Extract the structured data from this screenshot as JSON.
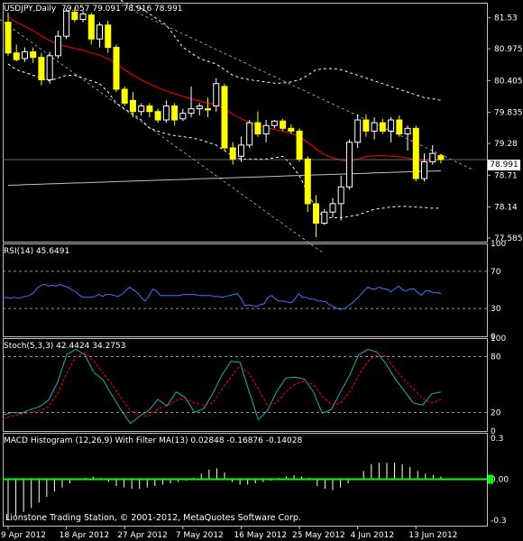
{
  "instrument": "USDJPY,Daily",
  "ohlc_readout": "79.057 79.091 78.916 78.991",
  "current_price_label": "78.991",
  "footer": "Lionstone Trading Station, © 2001-2012, MetaQuotes Software Corp.",
  "colors": {
    "background": "#000000",
    "bull_candle": "#ffffff",
    "bear_candle": "#ffff00",
    "moving_average": "#ff0000",
    "long_moving_average": "#c0c0c0",
    "bands": "#ffffff",
    "rsi_line": "#3c78ff",
    "stoch_main": "#20b2aa",
    "stoch_signal": "#ff0000",
    "macd_histogram": "#ffffff",
    "macd_filter": "#00ff00"
  },
  "x_axis": {
    "labels": [
      "9 Apr 2012",
      "18 Apr 2012",
      "27 Apr 2012",
      "7 May 2012",
      "16 May 2012",
      "25 May 2012",
      "4 Jun 2012",
      "13 Jun 2012"
    ],
    "label_bar_index": [
      0,
      7,
      14,
      21,
      28,
      35,
      42,
      49
    ]
  },
  "chart_data": [
    {
      "type": "candlestick",
      "panel": "price",
      "title": "USDJPY,Daily",
      "y_ticks": [
        81.53,
        80.975,
        80.405,
        79.835,
        79.28,
        78.71,
        78.14,
        77.585
      ],
      "ylim": [
        77.52,
        81.8
      ],
      "candles": [
        {
          "o": 81.45,
          "h": 81.62,
          "l": 80.85,
          "c": 80.9
        },
        {
          "o": 80.9,
          "h": 81.05,
          "l": 80.75,
          "c": 80.78
        },
        {
          "o": 80.8,
          "h": 81.0,
          "l": 80.74,
          "c": 80.92
        },
        {
          "o": 80.92,
          "h": 81.0,
          "l": 80.72,
          "c": 80.82
        },
        {
          "o": 80.82,
          "h": 80.9,
          "l": 80.32,
          "c": 80.42
        },
        {
          "o": 80.42,
          "h": 80.92,
          "l": 80.35,
          "c": 80.85
        },
        {
          "o": 80.85,
          "h": 81.3,
          "l": 80.8,
          "c": 81.2
        },
        {
          "o": 81.2,
          "h": 81.7,
          "l": 81.15,
          "c": 81.65
        },
        {
          "o": 81.63,
          "h": 81.7,
          "l": 81.45,
          "c": 81.5
        },
        {
          "o": 81.5,
          "h": 81.65,
          "l": 81.45,
          "c": 81.6
        },
        {
          "o": 81.58,
          "h": 81.62,
          "l": 81.05,
          "c": 81.15
        },
        {
          "o": 81.15,
          "h": 81.45,
          "l": 81.0,
          "c": 81.4
        },
        {
          "o": 81.4,
          "h": 81.48,
          "l": 80.9,
          "c": 81.0
        },
        {
          "o": 81.0,
          "h": 81.05,
          "l": 80.2,
          "c": 80.25
        },
        {
          "o": 80.25,
          "h": 80.3,
          "l": 79.95,
          "c": 80.0
        },
        {
          "o": 80.05,
          "h": 80.2,
          "l": 79.75,
          "c": 79.85
        },
        {
          "o": 79.85,
          "h": 80.0,
          "l": 79.78,
          "c": 79.95
        },
        {
          "o": 79.95,
          "h": 80.0,
          "l": 79.75,
          "c": 79.85
        },
        {
          "o": 79.85,
          "h": 79.9,
          "l": 79.65,
          "c": 79.7
        },
        {
          "o": 79.7,
          "h": 80.05,
          "l": 79.65,
          "c": 79.95
        },
        {
          "o": 79.95,
          "h": 80.0,
          "l": 79.6,
          "c": 79.7
        },
        {
          "o": 79.72,
          "h": 79.9,
          "l": 79.68,
          "c": 79.82
        },
        {
          "o": 79.82,
          "h": 80.3,
          "l": 79.75,
          "c": 79.9
        },
        {
          "o": 79.9,
          "h": 80.0,
          "l": 79.78,
          "c": 79.95
        },
        {
          "o": 79.9,
          "h": 80.1,
          "l": 79.75,
          "c": 79.88
        },
        {
          "o": 79.95,
          "h": 80.45,
          "l": 79.85,
          "c": 80.35
        },
        {
          "o": 80.3,
          "h": 80.35,
          "l": 79.15,
          "c": 79.2
        },
        {
          "o": 79.2,
          "h": 79.3,
          "l": 78.9,
          "c": 79.0
        },
        {
          "o": 79.05,
          "h": 79.4,
          "l": 78.95,
          "c": 79.25
        },
        {
          "o": 79.25,
          "h": 79.7,
          "l": 79.2,
          "c": 79.65
        },
        {
          "o": 79.65,
          "h": 79.85,
          "l": 79.4,
          "c": 79.45
        },
        {
          "o": 79.45,
          "h": 79.7,
          "l": 79.3,
          "c": 79.6
        },
        {
          "o": 79.6,
          "h": 79.7,
          "l": 79.55,
          "c": 79.68
        },
        {
          "o": 79.68,
          "h": 79.72,
          "l": 79.5,
          "c": 79.55
        },
        {
          "o": 79.55,
          "h": 79.62,
          "l": 79.45,
          "c": 79.5
        },
        {
          "o": 79.5,
          "h": 79.55,
          "l": 78.95,
          "c": 79.0
        },
        {
          "o": 79.0,
          "h": 79.05,
          "l": 78.05,
          "c": 78.2
        },
        {
          "o": 78.2,
          "h": 78.35,
          "l": 77.6,
          "c": 77.85
        },
        {
          "o": 77.85,
          "h": 78.1,
          "l": 77.82,
          "c": 78.05
        },
        {
          "o": 78.05,
          "h": 78.3,
          "l": 77.95,
          "c": 78.2
        },
        {
          "o": 78.2,
          "h": 78.7,
          "l": 77.9,
          "c": 78.5
        },
        {
          "o": 78.5,
          "h": 79.35,
          "l": 78.45,
          "c": 79.3
        },
        {
          "o": 79.3,
          "h": 79.8,
          "l": 79.2,
          "c": 79.7
        },
        {
          "o": 79.7,
          "h": 79.8,
          "l": 79.4,
          "c": 79.5
        },
        {
          "o": 79.5,
          "h": 79.75,
          "l": 79.35,
          "c": 79.65
        },
        {
          "o": 79.65,
          "h": 79.72,
          "l": 79.45,
          "c": 79.5
        },
        {
          "o": 79.5,
          "h": 79.75,
          "l": 79.3,
          "c": 79.7
        },
        {
          "o": 79.7,
          "h": 79.78,
          "l": 79.4,
          "c": 79.45
        },
        {
          "o": 79.45,
          "h": 79.6,
          "l": 79.15,
          "c": 79.55
        },
        {
          "o": 79.55,
          "h": 79.6,
          "l": 78.6,
          "c": 78.65
        },
        {
          "o": 78.65,
          "h": 79.1,
          "l": 78.6,
          "c": 78.95
        },
        {
          "o": 78.95,
          "h": 79.25,
          "l": 78.9,
          "c": 79.1
        },
        {
          "o": 79.06,
          "h": 79.09,
          "l": 78.92,
          "c": 78.99
        }
      ],
      "moving_average": [
        81.55,
        81.45,
        81.38,
        81.3,
        81.2,
        81.12,
        81.06,
        81.02,
        80.98,
        80.95,
        80.9,
        80.86,
        80.8,
        80.7,
        80.6,
        80.5,
        80.42,
        80.35,
        80.28,
        80.22,
        80.17,
        80.12,
        80.08,
        80.04,
        80.0,
        79.98,
        79.9,
        79.8,
        79.72,
        79.66,
        79.6,
        79.56,
        79.53,
        79.5,
        79.46,
        79.4,
        79.3,
        79.18,
        79.08,
        79.02,
        78.98,
        78.96,
        79.0,
        79.04,
        79.06,
        79.06,
        79.05,
        79.04,
        79.02,
        78.98,
        78.97,
        78.98,
        78.99
      ],
      "long_moving_average": [
        78.53,
        78.535,
        78.54,
        78.545,
        78.55,
        78.555,
        78.56,
        78.565,
        78.57,
        78.575,
        78.58,
        78.585,
        78.59,
        78.595,
        78.6,
        78.605,
        78.61,
        78.615,
        78.62,
        78.625,
        78.63,
        78.635,
        78.64,
        78.645,
        78.65,
        78.655,
        78.66,
        78.665,
        78.67,
        78.675,
        78.68,
        78.685,
        78.69,
        78.695,
        78.7,
        78.705,
        78.71,
        78.715,
        78.72,
        78.725,
        78.73,
        78.735,
        78.74,
        78.745,
        78.75,
        78.755,
        78.76,
        78.765,
        78.77,
        78.775,
        78.78,
        78.785,
        78.79
      ],
      "upper_band": [
        81.9,
        81.9,
        81.9,
        81.9,
        81.9,
        81.9,
        81.9,
        81.9,
        81.9,
        81.9,
        81.9,
        81.9,
        81.9,
        81.9,
        81.8,
        81.75,
        81.7,
        81.6,
        81.5,
        81.4,
        81.2,
        81.0,
        80.9,
        80.8,
        80.75,
        80.7,
        80.6,
        80.5,
        80.45,
        80.42,
        80.4,
        80.38,
        80.36,
        80.36,
        80.38,
        80.42,
        80.5,
        80.6,
        80.62,
        80.62,
        80.6,
        80.55,
        80.5,
        80.45,
        80.4,
        80.35,
        80.3,
        80.25,
        80.2,
        80.15,
        80.1,
        80.08,
        80.05
      ],
      "lower_band": [
        80.7,
        80.6,
        80.55,
        80.5,
        80.45,
        80.4,
        80.45,
        80.5,
        80.5,
        80.45,
        80.4,
        80.35,
        80.2,
        80.0,
        79.9,
        79.8,
        79.7,
        79.55,
        79.5,
        79.45,
        79.42,
        79.4,
        79.38,
        79.35,
        79.3,
        79.25,
        79.15,
        79.05,
        79.0,
        79.0,
        79.0,
        79.0,
        79.02,
        79.05,
        78.9,
        78.7,
        78.4,
        78.1,
        77.95,
        77.95,
        77.95,
        77.97,
        78.0,
        78.05,
        78.1,
        78.12,
        78.14,
        78.15,
        78.15,
        78.14,
        78.13,
        78.12,
        78.12
      ],
      "trend_channel": {
        "upper_start": {
          "bar": 13,
          "price": 81.8
        },
        "upper_end": {
          "bar": 56,
          "price": 78.8
        },
        "lower_start": {
          "bar": -1,
          "price": 81.5
        },
        "lower_end": {
          "bar": 38,
          "price": 77.3
        }
      }
    },
    {
      "type": "line",
      "panel": "rsi",
      "title": "RSI(14) 45.6491",
      "y_ticks": [
        100,
        70,
        30,
        0
      ],
      "levels": [
        70,
        30
      ],
      "ylim": [
        0,
        100
      ],
      "values": [
        41,
        42,
        41,
        42,
        41,
        42,
        43,
        44,
        47,
        52,
        55,
        56,
        54,
        55,
        54,
        56,
        54,
        53,
        50,
        48,
        44,
        42,
        42,
        42,
        43,
        45,
        43,
        45,
        45,
        44,
        43,
        45,
        49,
        53,
        50,
        47,
        42,
        38,
        43,
        51,
        49,
        44,
        44,
        44,
        44,
        44,
        44,
        45,
        45,
        45,
        45,
        44,
        44,
        44,
        44,
        43,
        43,
        42,
        43,
        44,
        45,
        46,
        41,
        33,
        34,
        33,
        32,
        34,
        35,
        42,
        44,
        40,
        38,
        38,
        37,
        36,
        40,
        46,
        42,
        42,
        40,
        40,
        38,
        38,
        37,
        34,
        32,
        30,
        29,
        30,
        33,
        36,
        40,
        44,
        49,
        53,
        51,
        51,
        53,
        51,
        51,
        48,
        51,
        54,
        50,
        49,
        51,
        51,
        47,
        44,
        49,
        49,
        47,
        47,
        46
      ]
    },
    {
      "type": "line",
      "panel": "stochastic",
      "title": "Stoch(5,3,3) 42.4424 34.2753",
      "y_ticks": [
        100,
        80,
        20,
        0
      ],
      "levels": [
        80,
        20
      ],
      "ylim": [
        0,
        100
      ],
      "series": [
        {
          "role": "main",
          "values": [
            17,
            20,
            19,
            23,
            26,
            33,
            52,
            82,
            88,
            82,
            63,
            55,
            38,
            22,
            8,
            16,
            22,
            34,
            27,
            42,
            36,
            20,
            24,
            40,
            60,
            75,
            74,
            42,
            12,
            22,
            42,
            57,
            58,
            56,
            43,
            19,
            23,
            42,
            60,
            82,
            88,
            85,
            72,
            56,
            43,
            30,
            28,
            40,
            42
          ]
        },
        {
          "role": "signal",
          "values": [
            13,
            16,
            18,
            20,
            22,
            26,
            40,
            62,
            80,
            84,
            75,
            62,
            50,
            35,
            22,
            17,
            16,
            24,
            27,
            33,
            35,
            30,
            28,
            30,
            45,
            58,
            70,
            62,
            45,
            28,
            30,
            42,
            50,
            54,
            50,
            38,
            28,
            30,
            42,
            60,
            75,
            82,
            80,
            66,
            55,
            45,
            35,
            30,
            34
          ]
        }
      ]
    },
    {
      "type": "bar",
      "panel": "macd",
      "title": "MACD Histogram (12,26,9) With Filter MA(13) 0.02848 -0.16876 -0.14028",
      "y_ticks": [
        0.3,
        0.0,
        -0.3
      ],
      "ylim": [
        -0.34,
        0.34
      ],
      "values": [
        -0.3,
        -0.27,
        -0.24,
        -0.21,
        -0.17,
        -0.13,
        -0.09,
        -0.06,
        -0.03,
        0.0,
        0.01,
        0.02,
        0.01,
        -0.02,
        -0.05,
        -0.06,
        -0.07,
        -0.07,
        -0.06,
        -0.05,
        -0.04,
        -0.03,
        -0.02,
        -0.01,
        0.01,
        0.04,
        0.07,
        0.08,
        0.05,
        -0.02,
        -0.04,
        -0.04,
        -0.03,
        -0.02,
        -0.01,
        0.01,
        0.02,
        0.03,
        0.02,
        0.01,
        -0.05,
        -0.07,
        -0.08,
        -0.06,
        -0.03,
        0.0,
        0.06,
        0.11,
        0.12,
        0.12,
        0.12,
        0.11,
        0.09,
        0.06,
        0.04,
        0.03,
        0.02
      ],
      "filter_line": 0.0
    }
  ]
}
